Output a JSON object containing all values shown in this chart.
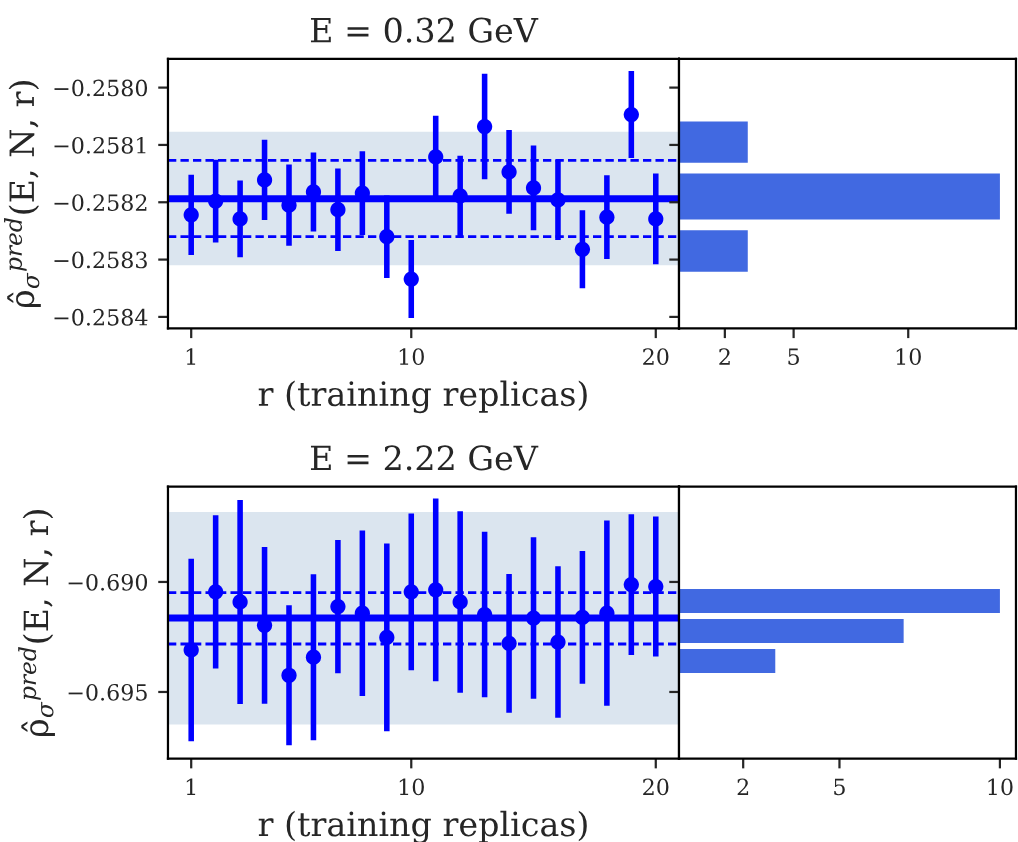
{
  "chart_data": [
    {
      "type": "scatter",
      "title": "E = 0.32 GeV",
      "xlabel": "r (training replicas)",
      "ylabel": "ρ̂$_{σ}$$^{pred}$(E, N, r)",
      "marker": "circle",
      "color": "#0000ff",
      "x": [
        1,
        2,
        3,
        4,
        5,
        6,
        7,
        8,
        9,
        10,
        11,
        12,
        13,
        14,
        15,
        16,
        17,
        18,
        19,
        20
      ],
      "values": [
        -0.258222,
        -0.258198,
        -0.258229,
        -0.258161,
        -0.258205,
        -0.258182,
        -0.258213,
        -0.258184,
        -0.25826,
        -0.258334,
        -0.258121,
        -0.258189,
        -0.258068,
        -0.258147,
        -0.258175,
        -0.258196,
        -0.258282,
        -0.258226,
        -0.258047,
        -0.258229
      ],
      "errors": [
        7e-05,
        7.2e-05,
        6.7e-05,
        7e-05,
        7.1e-05,
        6.9e-05,
        7.2e-05,
        7.3e-05,
        7.2e-05,
        6.8e-05,
        7.2e-05,
        7e-05,
        9.2e-05,
        7.3e-05,
        7.4e-05,
        7e-05,
        6.8e-05,
        7.3e-05,
        7.6e-05,
        7.9e-05
      ],
      "ref_lines": [
        {
          "axis": "y",
          "value": -0.258194,
          "color": "#0000ff",
          "line_style": "solid"
        },
        {
          "axis": "y",
          "value": -0.258127,
          "color": "#0000ff",
          "line_style": "dashed"
        },
        {
          "axis": "y",
          "value": -0.25826,
          "color": "#0000ff",
          "line_style": "dashed"
        }
      ],
      "bands": [
        {
          "axis": "y",
          "from": -0.25831,
          "to": -0.258077,
          "color": "#dbe5ef"
        }
      ],
      "xlim": [
        0.05,
        20.95
      ],
      "xticks": [
        1,
        10,
        20
      ],
      "ylim": [
        -0.25842,
        -0.25795
      ],
      "yticks": [
        {
          "value": -0.258,
          "label": "−0.2580"
        },
        {
          "value": -0.2581,
          "label": "−0.2581"
        },
        {
          "value": -0.2582,
          "label": "−0.2582"
        },
        {
          "value": -0.2583,
          "label": "−0.2583"
        },
        {
          "value": -0.2584,
          "label": "−0.2584"
        }
      ]
    },
    {
      "type": "histogram",
      "orientation": "horizontal",
      "color": "#4169e1",
      "tick_labels": "x",
      "bins": [
        -0.25833,
        -0.25824,
        -0.25814,
        -0.25805
      ],
      "values": [
        3,
        14,
        3
      ],
      "xlim": [
        0,
        14.7
      ],
      "xticks": [
        2,
        5,
        10
      ],
      "ylim": [
        -0.25842,
        -0.25795
      ],
      "yticks": [
        -0.258,
        -0.2581,
        -0.2582,
        -0.2583,
        -0.2584
      ]
    },
    {
      "type": "scatter",
      "title": "E = 2.22 GeV",
      "xlabel": "r (training replicas)",
      "ylabel": "ρ̂$_{σ}$$^{pred}$(E, N, r)",
      "marker": "circle",
      "color": "#0000ff",
      "x": [
        1,
        2,
        3,
        4,
        5,
        6,
        7,
        8,
        9,
        10,
        11,
        12,
        13,
        14,
        15,
        16,
        17,
        18,
        19,
        20
      ],
      "values": [
        -0.69309,
        -0.69045,
        -0.69091,
        -0.69197,
        -0.69424,
        -0.69342,
        -0.69112,
        -0.69142,
        -0.69252,
        -0.69045,
        -0.69036,
        -0.69091,
        -0.69148,
        -0.69279,
        -0.69164,
        -0.69273,
        -0.69161,
        -0.69142,
        -0.69012,
        -0.69021
      ],
      "errors": [
        0.00415,
        0.00348,
        0.00464,
        0.00356,
        0.00318,
        0.00377,
        0.00303,
        0.00376,
        0.00427,
        0.00356,
        0.00415,
        0.00412,
        0.00376,
        0.00315,
        0.00367,
        0.00344,
        0.00302,
        0.00421,
        0.0032,
        0.00318
      ],
      "ref_lines": [
        {
          "axis": "y",
          "value": -0.69164,
          "color": "#0000ff",
          "line_style": "solid"
        },
        {
          "axis": "y",
          "value": -0.69048,
          "color": "#0000ff",
          "line_style": "dashed"
        },
        {
          "axis": "y",
          "value": -0.69282,
          "color": "#0000ff",
          "line_style": "dashed"
        }
      ],
      "bands": [
        {
          "axis": "y",
          "from": -0.69648,
          "to": -0.68682,
          "color": "#dbe5ef"
        }
      ],
      "xlim": [
        0.05,
        20.95
      ],
      "xticks": [
        1,
        10,
        20
      ],
      "ylim": [
        -0.69803,
        -0.68567
      ],
      "yticks": [
        {
          "value": -0.69,
          "label": "−0.690"
        },
        {
          "value": -0.695,
          "label": "−0.695"
        }
      ]
    },
    {
      "type": "histogram",
      "orientation": "horizontal",
      "color": "#4169e1",
      "tick_labels": "x",
      "bins": [
        -0.69427,
        -0.69291,
        -0.69155,
        -0.69018
      ],
      "values": [
        3,
        7,
        10
      ],
      "xlim": [
        0,
        10.5
      ],
      "xticks": [
        2,
        5,
        10
      ],
      "ylim": [
        -0.69803,
        -0.68567
      ],
      "yticks": [
        -0.69,
        -0.695
      ]
    }
  ]
}
